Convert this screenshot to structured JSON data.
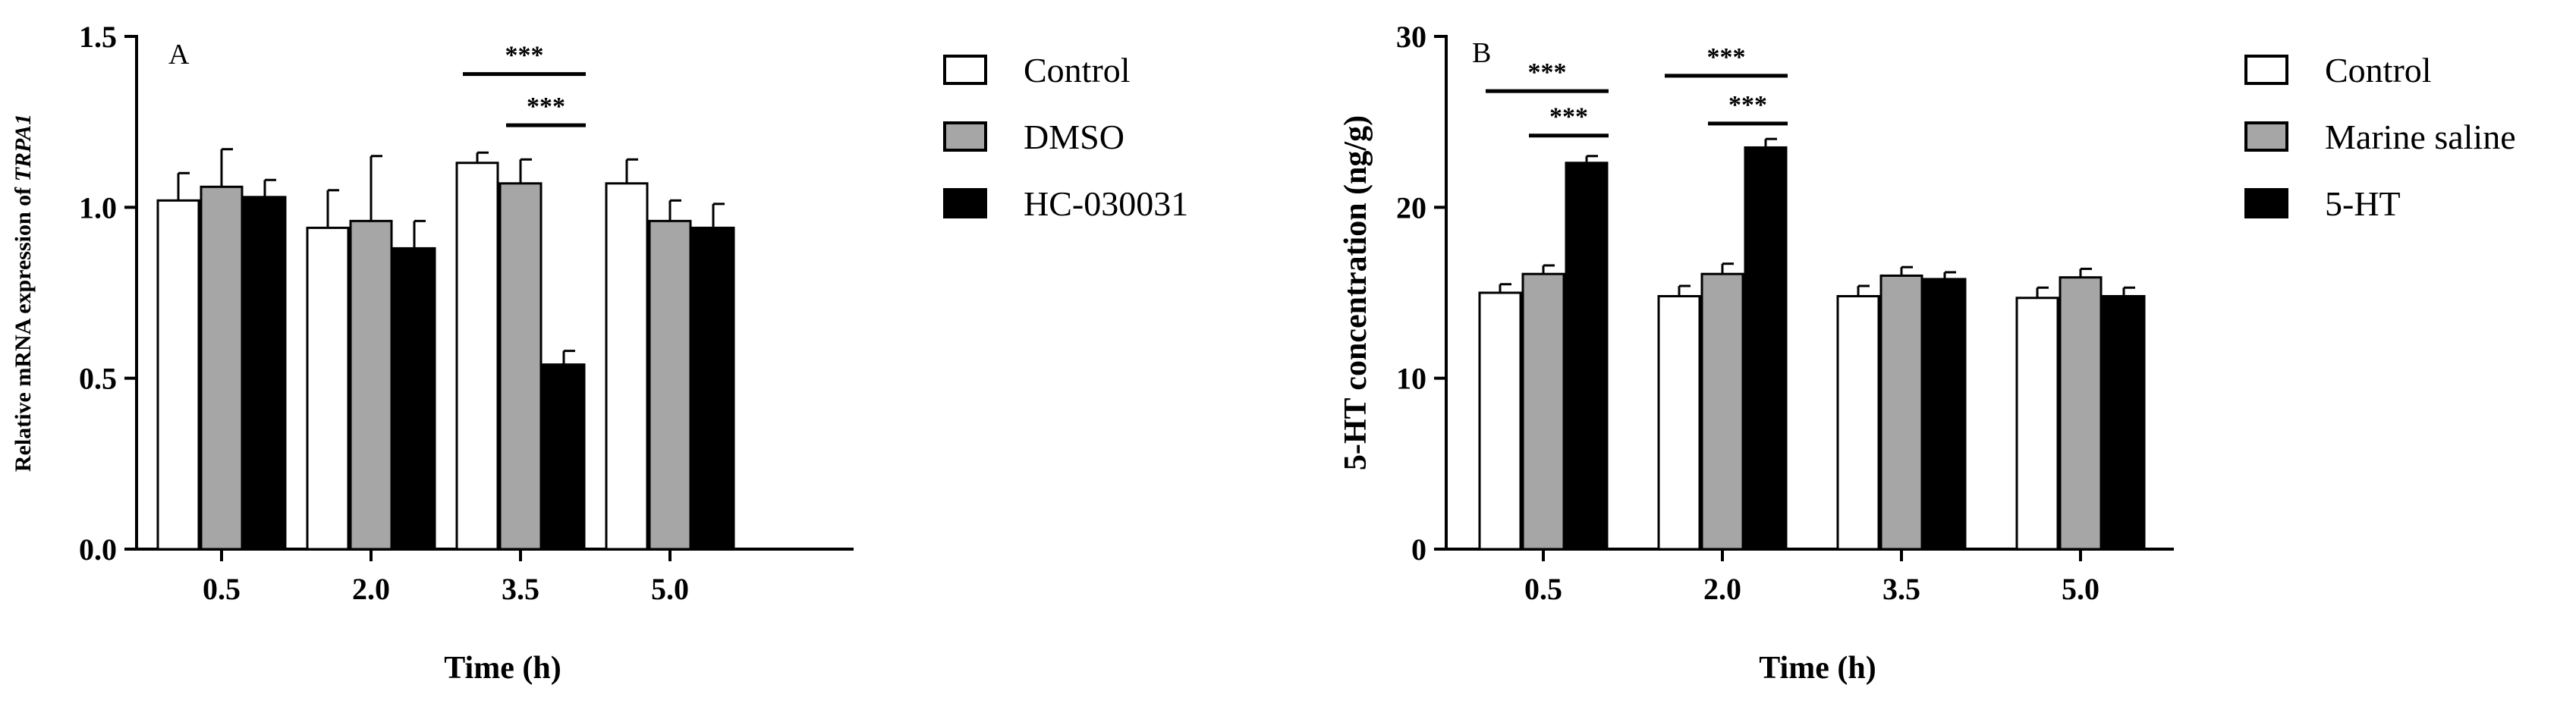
{
  "chart_data": [
    {
      "type": "bar",
      "panel_label": "A",
      "xlabel": "Time (h)",
      "ylabel_parts": [
        {
          "text": "Relative mRNA expression of ",
          "italic": false
        },
        {
          "text": "TRPA1",
          "italic": true
        }
      ],
      "categories": [
        "0.5",
        "2.0",
        "3.5",
        "5.0"
      ],
      "ylim": [
        0,
        1.5
      ],
      "yticks": [
        "0.0",
        "0.5",
        "1.0",
        "1.5"
      ],
      "ytick_values": [
        0,
        0.5,
        1.0,
        1.5
      ],
      "grid": false,
      "legend_position": "right",
      "series": [
        {
          "name": "Control",
          "color": "#ffffff",
          "values": [
            1.02,
            0.94,
            1.13,
            1.07
          ],
          "errors": [
            0.08,
            0.11,
            0.03,
            0.07
          ]
        },
        {
          "name": "DMSO",
          "color": "#a6a6a6",
          "values": [
            1.06,
            0.96,
            1.07,
            0.96
          ],
          "errors": [
            0.11,
            0.19,
            0.07,
            0.06
          ]
        },
        {
          "name": "HC-030031",
          "color": "#000000",
          "values": [
            1.03,
            0.88,
            0.54,
            0.94
          ],
          "errors": [
            0.05,
            0.08,
            0.04,
            0.07
          ]
        }
      ],
      "annotations": [
        {
          "label": "***",
          "category": "3.5",
          "from_series": 0,
          "to_series": 2,
          "y": 1.39
        },
        {
          "label": "***",
          "category": "3.5",
          "from_series": 1,
          "to_series": 2,
          "y": 1.24
        }
      ]
    },
    {
      "type": "bar",
      "panel_label": "B",
      "xlabel": "Time (h)",
      "ylabel_parts": [
        {
          "text": "5-HT concentration (ng/g)",
          "italic": false
        }
      ],
      "categories": [
        "0.5",
        "2.0",
        "3.5",
        "5.0"
      ],
      "ylim": [
        0,
        30
      ],
      "yticks": [
        "0",
        "10",
        "20",
        "30"
      ],
      "ytick_values": [
        0,
        10,
        20,
        30
      ],
      "grid": false,
      "legend_position": "right",
      "series": [
        {
          "name": "Control",
          "color": "#ffffff",
          "values": [
            15.0,
            14.8,
            14.8,
            14.7
          ],
          "errors": [
            0.5,
            0.6,
            0.6,
            0.6
          ]
        },
        {
          "name": "Marine saline",
          "color": "#a6a6a6",
          "values": [
            16.1,
            16.1,
            16.0,
            15.9
          ],
          "errors": [
            0.5,
            0.6,
            0.5,
            0.5
          ]
        },
        {
          "name": "5-HT",
          "color": "#000000",
          "values": [
            22.6,
            23.5,
            15.8,
            14.8
          ],
          "errors": [
            0.4,
            0.5,
            0.4,
            0.5
          ]
        }
      ],
      "annotations": [
        {
          "label": "***",
          "category": "0.5",
          "from_series": 0,
          "to_series": 2,
          "y": 26.8
        },
        {
          "label": "***",
          "category": "0.5",
          "from_series": 1,
          "to_series": 2,
          "y": 24.2
        },
        {
          "label": "***",
          "category": "2.0",
          "from_series": 0,
          "to_series": 2,
          "y": 27.7
        },
        {
          "label": "***",
          "category": "2.0",
          "from_series": 1,
          "to_series": 2,
          "y": 24.9
        }
      ]
    }
  ]
}
